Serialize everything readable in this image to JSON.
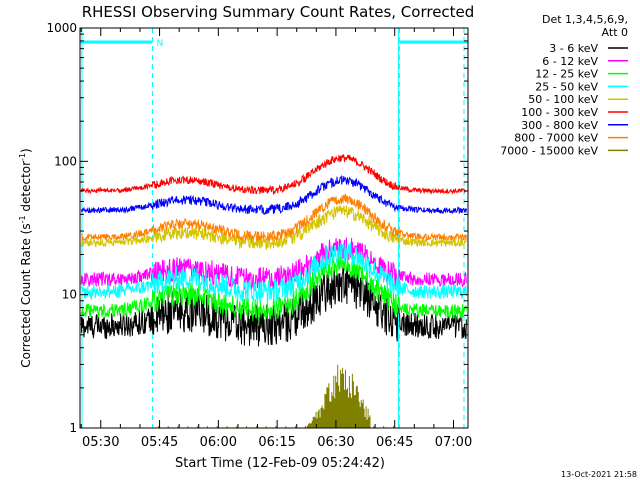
{
  "chart_data": {
    "type": "line",
    "title": "RHESSI Observing Summary Count Rates, Corrected",
    "xlabel": "Start Time (12-Feb-09 05:24:42)",
    "ylabel_main": "Corrected Count Rate (s",
    "ylabel_sup1": "-1",
    "ylabel_mid": " detector",
    "ylabel_sup2": "-1",
    "ylabel_end": ")",
    "x_unit": "minutes after 05:24:42",
    "xlim": [
      0,
      99
    ],
    "yscale": "log",
    "ylim": [
      1,
      1000
    ],
    "xticks": [
      {
        "t": 5.3,
        "label": "05:30"
      },
      {
        "t": 20.3,
        "label": "05:45"
      },
      {
        "t": 35.3,
        "label": "06:00"
      },
      {
        "t": 50.3,
        "label": "06:15"
      },
      {
        "t": 65.3,
        "label": "06:30"
      },
      {
        "t": 80.3,
        "label": "06:45"
      },
      {
        "t": 95.3,
        "label": "07:00"
      }
    ],
    "yticks": [
      {
        "v": 1,
        "label": "1"
      },
      {
        "v": 10,
        "label": "10"
      },
      {
        "v": 100,
        "label": "100"
      },
      {
        "v": 1000,
        "label": "1000"
      }
    ],
    "legend": {
      "position": "right",
      "header1": "Det 1,3,4,5,6,9,",
      "header2": "Att 0"
    },
    "attenuator_marker": "N",
    "night_intervals": [
      [
        -1,
        18.5
      ],
      [
        81.5,
        99
      ]
    ],
    "series": [
      {
        "name": "3 - 6 keV",
        "color": "#000000",
        "base": 5.8,
        "peak": 12.0,
        "noise": 0.16
      },
      {
        "name": "6 - 12 keV",
        "color": "#ff00ff",
        "base": 13.0,
        "peak": 22.5,
        "noise": 0.09
      },
      {
        "name": "12 - 25 keV",
        "color": "#00ff00",
        "base": 7.5,
        "peak": 17.0,
        "noise": 0.09
      },
      {
        "name": "25 - 50 keV",
        "color": "#00ffff",
        "base": 10.5,
        "peak": 21.0,
        "noise": 0.09
      },
      {
        "name": "50 - 100 keV",
        "color": "#d4c400",
        "base": 24.5,
        "peak": 42.0,
        "noise": 0.05
      },
      {
        "name": "100 - 300 keV",
        "color": "#ff0000",
        "base": 60.0,
        "peak": 106.0,
        "noise": 0.03
      },
      {
        "name": "300 - 800 keV",
        "color": "#0000ff",
        "base": 43.0,
        "peak": 72.0,
        "noise": 0.035
      },
      {
        "name": "800 - 7000 keV",
        "color": "#ff8000",
        "base": 27.0,
        "peak": 52.0,
        "noise": 0.04
      },
      {
        "name": "7000 - 15000 keV",
        "color": "#808000",
        "base": 1.0,
        "peak": 2.8,
        "noise": 0.3
      }
    ]
  },
  "footer": {
    "timestamp": "13-Oct-2021 21:58"
  }
}
